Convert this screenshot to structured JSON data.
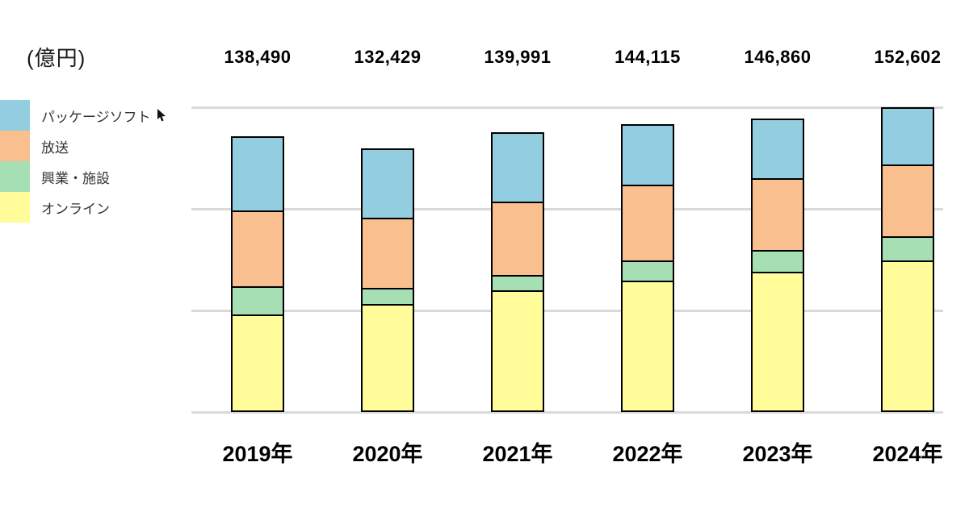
{
  "unit_label": "(億円)",
  "legend": [
    {
      "label": "パッケージソフト",
      "color": "#92CEDF"
    },
    {
      "label": "放送",
      "color": "#FABF8F"
    },
    {
      "label": "興業・施設",
      "color": "#A6DFB4"
    },
    {
      "label": "オンライン",
      "color": "#FFFC99"
    }
  ],
  "totals_display": [
    "138,490",
    "132,429",
    "139,991",
    "144,115",
    "146,860",
    "152,602"
  ],
  "chart_data": {
    "type": "bar",
    "stacked": true,
    "title": "",
    "ylabel": "(億円)",
    "xlabel": "",
    "categories": [
      "2019年",
      "2020年",
      "2021年",
      "2022年",
      "2023年",
      "2024年"
    ],
    "series": [
      {
        "name": "オンライン",
        "color": "#FFFC99",
        "values": [
          48200,
          53300,
          59900,
          64700,
          68850,
          74700
        ]
      },
      {
        "name": "興業・施設",
        "color": "#A6DFB4",
        "values": [
          14700,
          8700,
          8300,
          10800,
          11500,
          12700
        ]
      },
      {
        "name": "放送",
        "color": "#FABF8F",
        "values": [
          38200,
          35400,
          36900,
          37900,
          36200,
          36200
        ]
      },
      {
        "name": "パッケージソフト",
        "color": "#92CEDF",
        "values": [
          37390,
          35029,
          34891,
          30715,
          30310,
          29002
        ]
      }
    ],
    "totals": [
      138490,
      132429,
      139991,
      144115,
      146860,
      152602
    ],
    "ylim": [
      0,
      150000
    ],
    "gridlines": [
      0,
      50000,
      100000,
      150000
    ],
    "grid": true,
    "legend_position": "left",
    "bar_border_color": "#000000",
    "gridline_color": "#d9d9d9"
  }
}
